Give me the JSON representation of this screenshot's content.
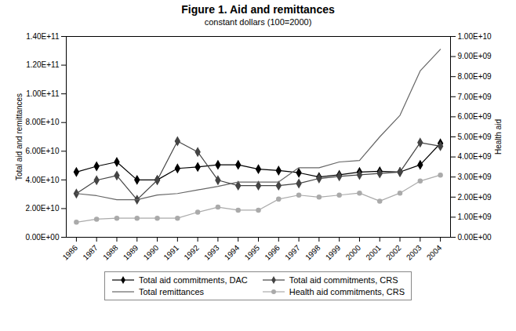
{
  "chart_data": {
    "type": "line",
    "title": "Figure 1. Aid and remittances",
    "subtitle": "constant dollars (100=2000)",
    "ylabel": "Total aid and remittances",
    "y2label": "Health aid",
    "x": [
      1986,
      1987,
      1988,
      1989,
      1990,
      1991,
      1992,
      1993,
      1994,
      1995,
      1996,
      1997,
      1998,
      1999,
      2000,
      2001,
      2002,
      2003,
      2004
    ],
    "xlim": [
      1985.5,
      2004.5
    ],
    "xticks": [
      1986,
      1987,
      1988,
      1989,
      1990,
      1991,
      1992,
      1993,
      1994,
      1995,
      1996,
      1997,
      1998,
      1999,
      2000,
      2001,
      2002,
      2003,
      2004
    ],
    "ylim": [
      0,
      140000000000.0
    ],
    "yticks": [
      {
        "value": 0,
        "label": "0.00E+00"
      },
      {
        "value": 20000000000.0,
        "label": "2.00E+10"
      },
      {
        "value": 40000000000.0,
        "label": "4.00E+10"
      },
      {
        "value": 60000000000.0,
        "label": "6.00E+10"
      },
      {
        "value": 80000000000.0,
        "label": "8.00E+10"
      },
      {
        "value": 100000000000.0,
        "label": "1.00E+11"
      },
      {
        "value": 120000000000.0,
        "label": "1.20E+11"
      },
      {
        "value": 140000000000.0,
        "label": "1.40E+11"
      }
    ],
    "y2lim": [
      0,
      10000000000.0
    ],
    "y2ticks": [
      {
        "value": 0,
        "label": "0.00E+00"
      },
      {
        "value": 1000000000.0,
        "label": "1.00E+09"
      },
      {
        "value": 2000000000.0,
        "label": "2.00E+09"
      },
      {
        "value": 3000000000.0,
        "label": "3.00E+09"
      },
      {
        "value": 4000000000.0,
        "label": "4.00E+09"
      },
      {
        "value": 5000000000.0,
        "label": "5.00E+09"
      },
      {
        "value": 6000000000.0,
        "label": "6.00E+09"
      },
      {
        "value": 7000000000.0,
        "label": "7.00E+09"
      },
      {
        "value": 8000000000.0,
        "label": "8.00E+09"
      },
      {
        "value": 9000000000.0,
        "label": "9.00E+09"
      },
      {
        "value": 10000000000.0,
        "label": "1.00E+10"
      }
    ],
    "grid": false,
    "legend": "bottom",
    "series": [
      {
        "name": "Total aid commitments, DAC",
        "color": "#000000",
        "marker": "diamond",
        "values": [
          45500000000.0,
          49500000000.0,
          52500000000.0,
          40000000000.0,
          40000000000.0,
          48000000000.0,
          49000000000.0,
          50500000000.0,
          50500000000.0,
          47500000000.0,
          46500000000.0,
          45000000000.0,
          42000000000.0,
          43500000000.0,
          45500000000.0,
          46000000000.0,
          45500000000.0,
          50500000000.0,
          65500000000.0
        ]
      },
      {
        "name": "Total aid commitments, CRS",
        "color": "#444444",
        "marker": "diamond",
        "values": [
          30500000000.0,
          39800000000.0,
          43000000000.0,
          26200000000.0,
          39800000000.0,
          67000000000.0,
          59500000000.0,
          39800000000.0,
          36000000000.0,
          36000000000.0,
          36000000000.0,
          37500000000.0,
          41000000000.0,
          42500000000.0,
          43500000000.0,
          44500000000.0,
          45500000000.0,
          66000000000.0,
          63500000000.0
        ]
      },
      {
        "name": "Total remittances",
        "color": "#666666",
        "marker": "none",
        "values": [
          30500000000.0,
          29000000000.0,
          26200000000.0,
          26200000000.0,
          29500000000.0,
          30500000000.0,
          33000000000.0,
          35500000000.0,
          38500000000.0,
          38500000000.0,
          38500000000.0,
          48500000000.0,
          48500000000.0,
          52500000000.0,
          53500000000.0,
          70000000000.0,
          85000000000.0,
          116000000000.0,
          131000000000.0
        ]
      },
      {
        "name": "Health aid commitments, CRS",
        "color": "#aaaaaa",
        "marker": "circle",
        "axis": "y2",
        "values": [
          750000000.0,
          900000000.0,
          950000000.0,
          950000000.0,
          950000000.0,
          950000000.0,
          1250000000.0,
          1500000000.0,
          1350000000.0,
          1350000000.0,
          1900000000.0,
          2100000000.0,
          2000000000.0,
          2100000000.0,
          2200000000.0,
          1800000000.0,
          2200000000.0,
          2800000000.0,
          3100000000.0
        ]
      }
    ]
  }
}
